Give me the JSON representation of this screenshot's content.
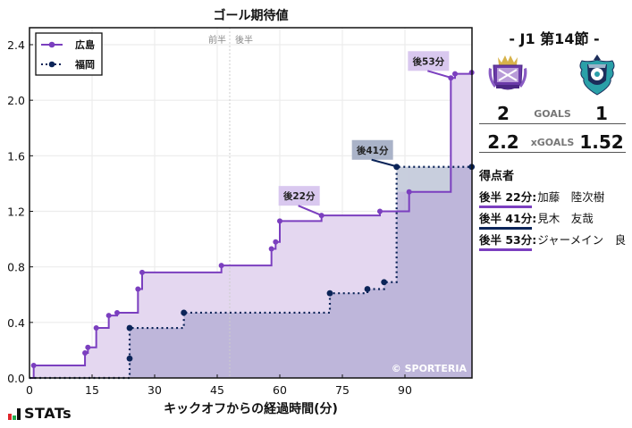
{
  "chart_data": {
    "type": "line",
    "subtype": "step-area",
    "title": "ゴール期待値",
    "xlabel": "キックオフからの経過時間(分)",
    "ylabel": "",
    "xlim": [
      0,
      106
    ],
    "ylim": [
      0,
      2.52
    ],
    "x_ticks": [
      0,
      15,
      30,
      45,
      60,
      75,
      90
    ],
    "x_tick_labels": [
      "0",
      "15",
      "30",
      "45",
      "60",
      "75",
      "90"
    ],
    "y_ticks": [
      0.0,
      0.4,
      0.8,
      1.2,
      1.6,
      2.0,
      2.4
    ],
    "y_tick_labels": [
      "0.0",
      "0.4",
      "0.8",
      "1.2",
      "1.6",
      "2.0",
      "2.4"
    ],
    "grid": true,
    "legend_position": "upper left",
    "halftime_marker": {
      "x": 48,
      "labels": [
        "前半",
        "後半"
      ]
    },
    "series": [
      {
        "name": "広島",
        "color": "#7b3fbf",
        "fill": "#e4d7f0",
        "line_style": "solid",
        "x": [
          0,
          1,
          13.3,
          14,
          16,
          19,
          21,
          26,
          27,
          46,
          58,
          59,
          60,
          70,
          84,
          91,
          101,
          102,
          106
        ],
        "values": [
          0,
          0.09,
          0.18,
          0.22,
          0.36,
          0.45,
          0.47,
          0.64,
          0.76,
          0.81,
          0.93,
          0.98,
          1.13,
          1.17,
          1.2,
          1.34,
          2.16,
          2.19,
          2.2
        ]
      },
      {
        "name": "福岡",
        "color": "#0b2458",
        "fill": "#b7b0d6",
        "line_style": "dotted",
        "x": [
          0,
          24,
          24,
          37,
          72,
          81,
          85,
          88,
          106
        ],
        "values": [
          0,
          0.14,
          0.36,
          0.47,
          0.61,
          0.64,
          0.69,
          1.52,
          1.52
        ]
      }
    ],
    "annotations": [
      {
        "text": "後22分",
        "x": 70,
        "y": 1.17,
        "team": "広島"
      },
      {
        "text": "後41分",
        "x": 88,
        "y": 1.52,
        "team": "福岡"
      },
      {
        "text": "後53分",
        "x": 101,
        "y": 2.16,
        "team": "広島"
      }
    ],
    "watermark": "© SPORTERIA"
  },
  "header": {
    "match_title": "- J1 第14節 -"
  },
  "teams": {
    "home": {
      "name": "広島",
      "logo_icon": "sanfrecce-hiroshima-crest",
      "goals": "2",
      "xgoals": "2.2"
    },
    "away": {
      "name": "福岡",
      "logo_icon": "avispa-fukuoka-crest",
      "goals": "1",
      "xgoals": "1.52"
    }
  },
  "labels": {
    "goals": "GOALS",
    "xgoals": "xGOALS",
    "scorers_title": "得点者"
  },
  "scorers": [
    {
      "time": "後半 22分",
      "sep": ":",
      "name": "加藤　陸次樹",
      "team": "home"
    },
    {
      "time": "後半 41分",
      "sep": ":",
      "name": "見木　友哉",
      "team": "away"
    },
    {
      "time": "後半 53分",
      "sep": ":",
      "name": "ジャーメイン　良",
      "team": "home"
    }
  ],
  "branding": {
    "logo_text": "STATs",
    "watermark": "© SPORTERIA"
  }
}
